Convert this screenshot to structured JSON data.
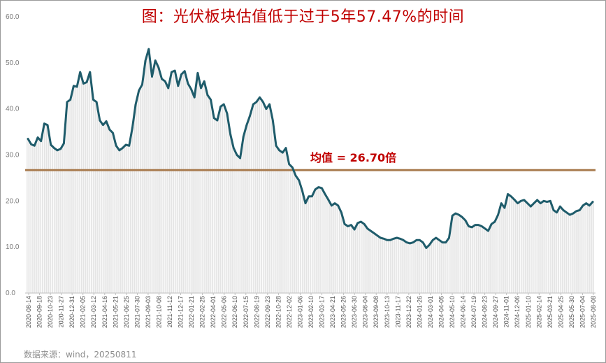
{
  "title": "图：光伏板块估值低于过于5年57.47%的时间",
  "source": "数据来源：wind，20250811",
  "chart_data": {
    "type": "line",
    "title": "图：光伏板块估值低于过于5年57.47%的时间",
    "xlabel": "",
    "ylabel": "",
    "ylim": [
      0,
      60
    ],
    "yticks": [
      "0.0",
      "10.0",
      "20.0",
      "30.0",
      "40.0",
      "50.0",
      "60.0"
    ],
    "x_tick_labels": [
      "2020-08-14",
      "2020-09-18",
      "2020-10-23",
      "2020-11-27",
      "2020-12-31",
      "2021-02-05",
      "2021-03-12",
      "2021-04-16",
      "2021-05-21",
      "2021-06-25",
      "2021-07-30",
      "2021-09-03",
      "2021-10-08",
      "2021-11-12",
      "2021-12-17",
      "2022-01-21",
      "2022-02-25",
      "2022-04-01",
      "2022-05-06",
      "2022-06-10",
      "2022-07-15",
      "2022-08-19",
      "2022-09-23",
      "2022-10-28",
      "2022-12-02",
      "2023-01-06",
      "2023-02-10",
      "2023-03-17",
      "2023-04-21",
      "2023-05-26",
      "2023-06-30",
      "2023-08-04",
      "2023-09-08",
      "2023-10-13",
      "2023-11-17",
      "2023-12-22",
      "2024-01-26",
      "2024-03-01",
      "2024-04-05",
      "2024-05-10",
      "2024-06-14",
      "2024-07-19",
      "2024-08-23",
      "2024-09-27",
      "2024-11-01",
      "2024-12-06",
      "2025-01-10",
      "2025-02-14",
      "2025-03-21",
      "2025-04-25",
      "2025-05-30",
      "2025-07-04",
      "2025-08-08"
    ],
    "x_tick_labels_actual": [
      "2020-08-14",
      "2020-09-18",
      "2020-10-23",
      "2020-11-27",
      "2020-12-31",
      "2021-02-05",
      "2021-03-12",
      "2021-04-16",
      "2021-05-21",
      "2021-06-25",
      "2021-07-30",
      "2021-09-03",
      "2021-10-08",
      "2021-11-12",
      "2021-12-17",
      "2022-01-21",
      "2022-02-25",
      "2022-04-01",
      "2022-05-06",
      "2022-06-10",
      "2022-07-15",
      "2022-08-19",
      "2022-09-23",
      "2022-10-28",
      "2022-12-02",
      "2023-01-06",
      "2023-02-10",
      "2023-03-17",
      "2023-04-21",
      "2023-05-26",
      "2023-06-30",
      "2023-08-04",
      "2023-09-08",
      "2023-10-13",
      "2023-11-17",
      "2023-12-22",
      "2024-01-26",
      "2024-03-01",
      "2024-04-05",
      "2024-05-10",
      "2024-06-14",
      "2024-07-19",
      "2024-08-23",
      "2024-09-27",
      "2024-11-01",
      "2024-12-06",
      "2025-01-10",
      "2025-02-14",
      "2025-03-21",
      "2025-04-25",
      "2025-05-30",
      "2025-07-04",
      "2025-08-08"
    ],
    "series": [
      {
        "name": "",
        "color": "#1f5c6b",
        "values": [
          33.5,
          32.3,
          32.0,
          33.8,
          33.0,
          36.8,
          36.5,
          32.2,
          31.5,
          31.0,
          31.3,
          32.5,
          41.5,
          42.0,
          45.0,
          44.8,
          48.0,
          45.5,
          45.8,
          48.0,
          42.0,
          41.5,
          37.5,
          36.5,
          37.3,
          35.5,
          34.8,
          32.0,
          31.0,
          31.5,
          32.2,
          32.0,
          36.0,
          41.0,
          44.0,
          45.3,
          50.5,
          53.0,
          47.0,
          50.5,
          49.0,
          46.5,
          46.0,
          44.5,
          48.0,
          48.3,
          45.0,
          47.5,
          48.2,
          45.5,
          44.3,
          42.5,
          47.8,
          44.5,
          46.0,
          43.0,
          42.0,
          38.0,
          37.5,
          40.5,
          41.0,
          39.0,
          34.5,
          31.5,
          30.0,
          29.3,
          34.0,
          36.5,
          38.5,
          41.0,
          41.5,
          42.5,
          41.5,
          40.0,
          41.0,
          37.5,
          32.0,
          31.0,
          30.5,
          31.5,
          28.0,
          27.3,
          25.5,
          24.5,
          22.3,
          19.5,
          21.0,
          21.0,
          22.5,
          23.0,
          22.8,
          21.5,
          20.3,
          19.0,
          19.5,
          19.0,
          17.5,
          15.0,
          14.5,
          14.8,
          13.8,
          15.2,
          15.5,
          15.0,
          14.0,
          13.5,
          13.0,
          12.5,
          12.0,
          11.8,
          11.5,
          11.5,
          11.8,
          12.0,
          11.8,
          11.5,
          11.0,
          10.8,
          11.0,
          11.5,
          11.5,
          11.0,
          9.8,
          10.5,
          11.5,
          12.0,
          11.5,
          11.0,
          11.0,
          12.0,
          16.8,
          17.3,
          17.0,
          16.5,
          15.8,
          14.5,
          14.3,
          14.8,
          14.8,
          14.5,
          14.0,
          13.5,
          15.0,
          15.5,
          17.0,
          19.5,
          18.5,
          21.5,
          21.0,
          20.3,
          19.5,
          20.0,
          20.2,
          19.5,
          18.8,
          19.5,
          20.2,
          19.5,
          20.0,
          19.8,
          20.0,
          18.0,
          17.5,
          18.8,
          18.0,
          17.5,
          17.0,
          17.3,
          17.8,
          18.0,
          19.0,
          19.5,
          19.0,
          19.8
        ]
      }
    ],
    "average": {
      "value": 26.7,
      "label": "均值 = 26.70倍",
      "color": "#a97c50"
    },
    "grid": false,
    "legend": "none"
  }
}
